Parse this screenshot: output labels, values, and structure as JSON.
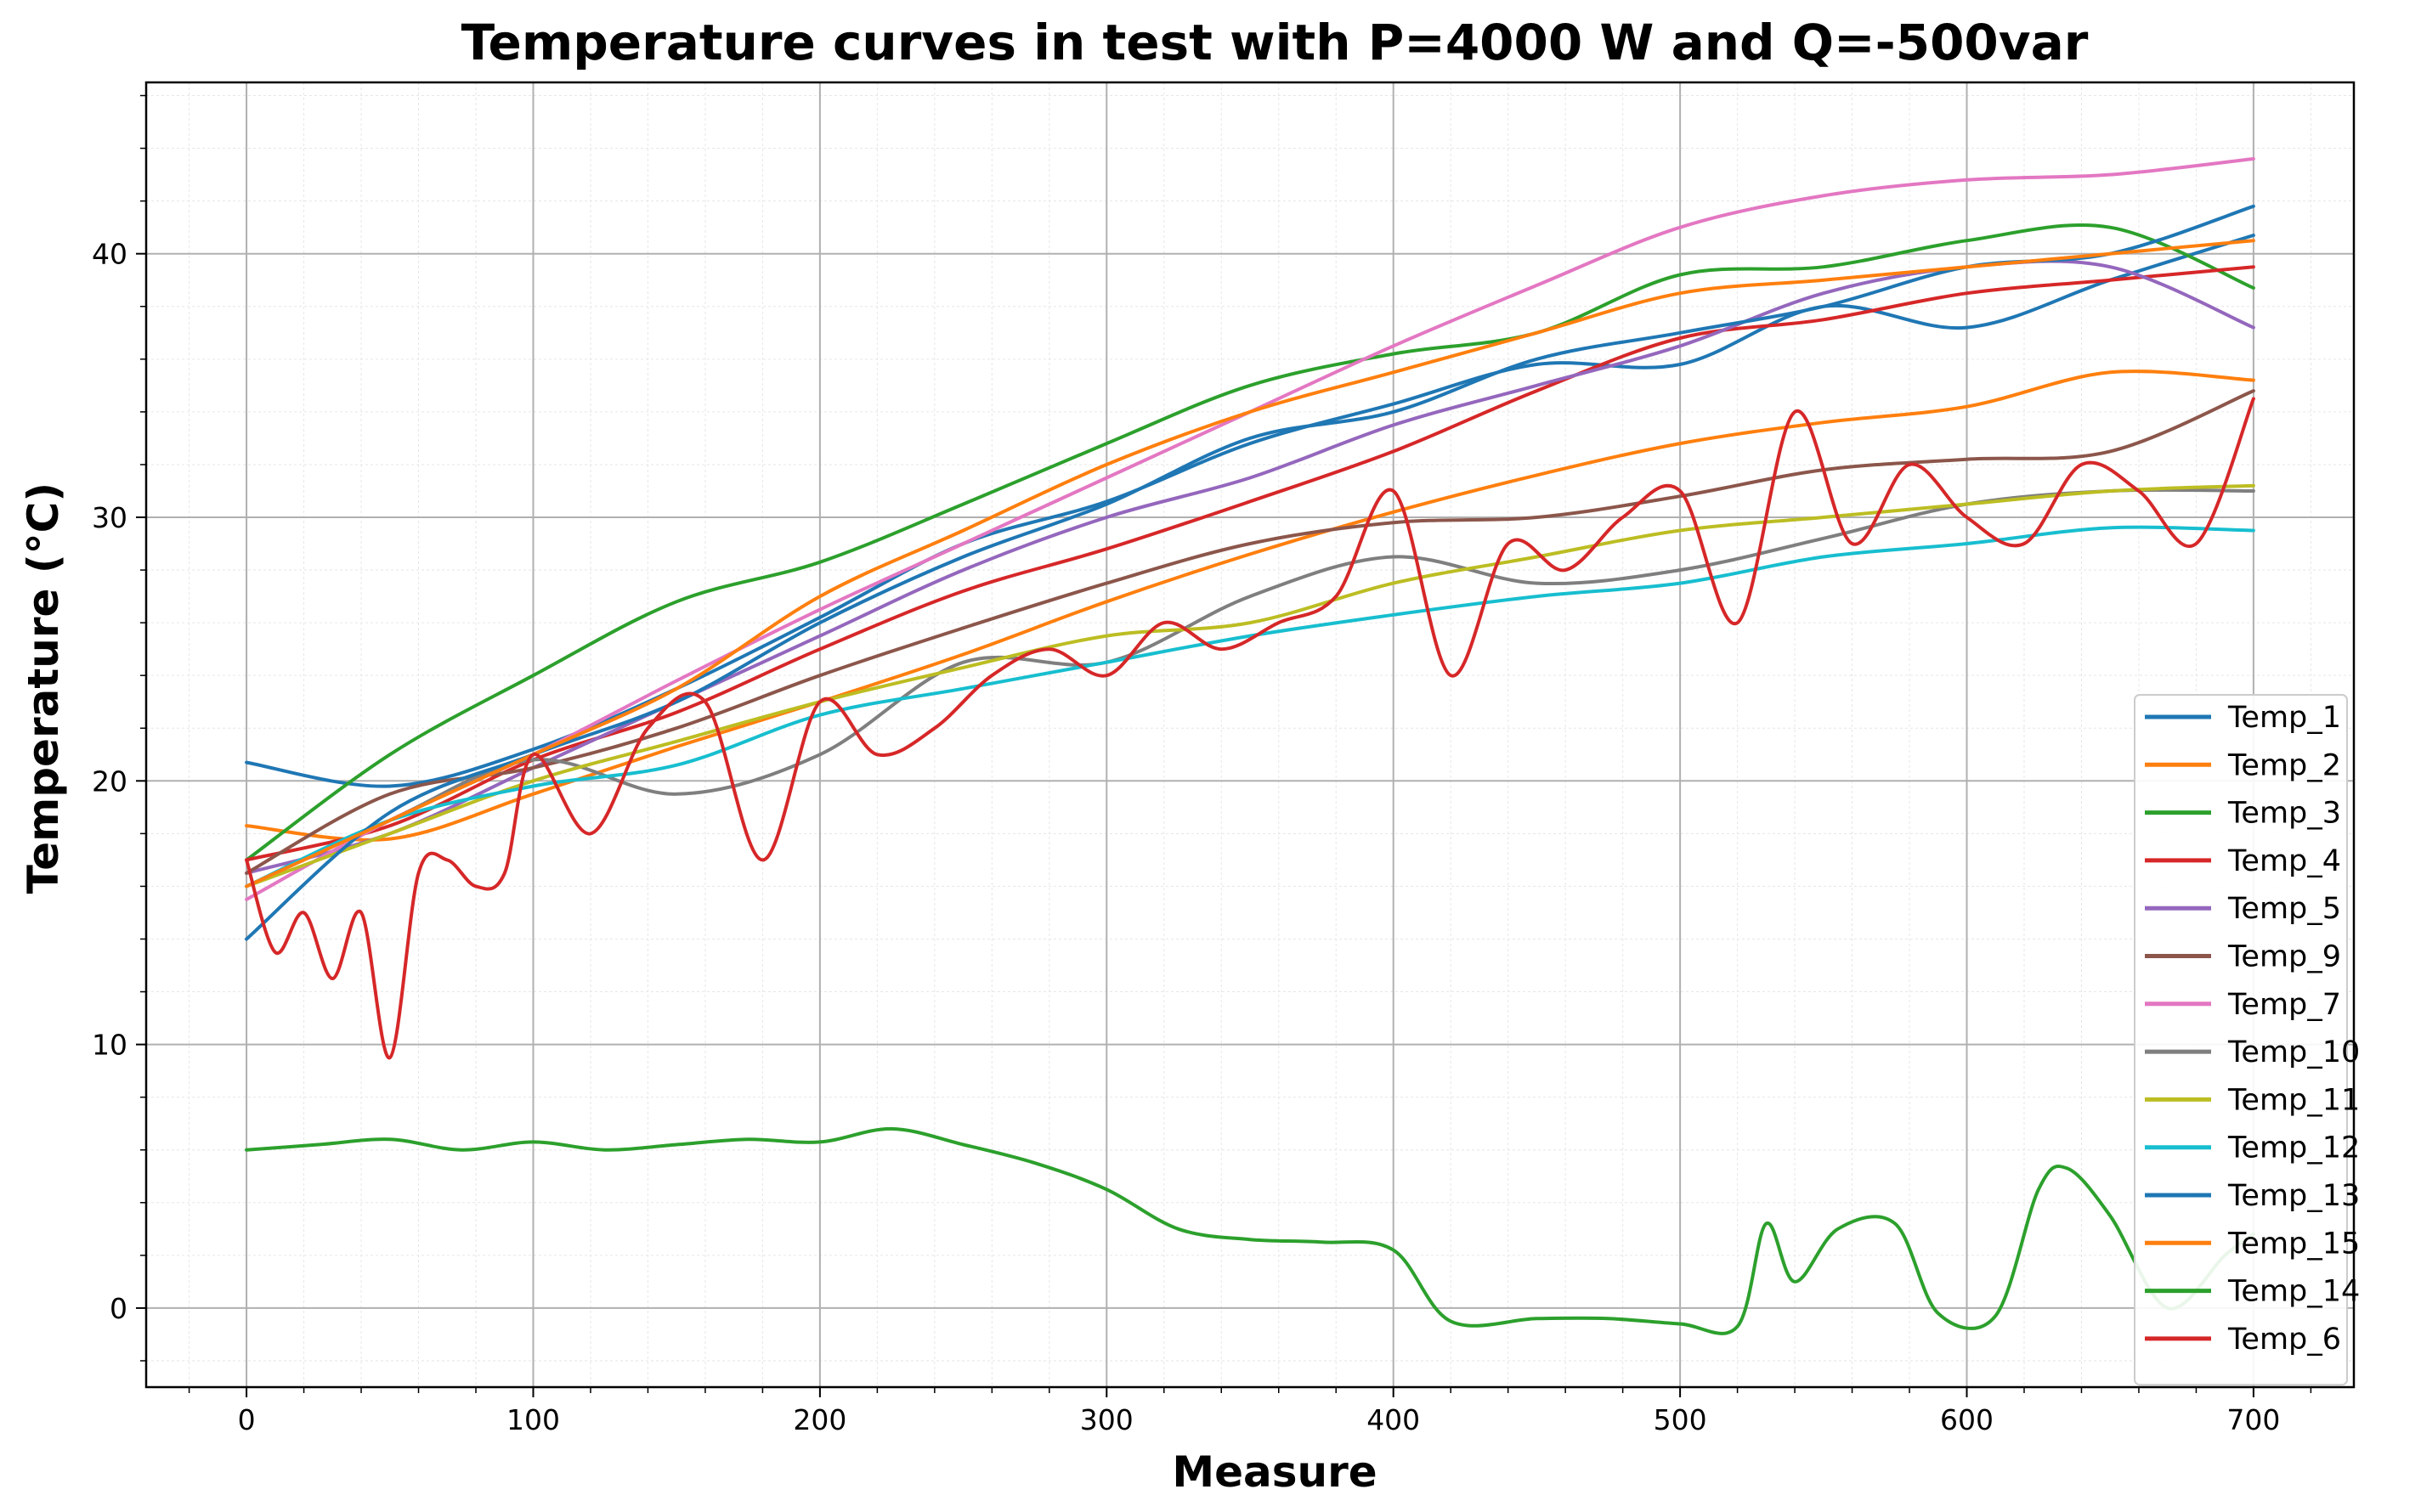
{
  "chart_data": {
    "type": "line",
    "title": "Temperature curves in test with P=4000 W and Q=-500var",
    "xlabel": "Measure",
    "ylabel": "Temperature (°C)",
    "xlim": [
      -35,
      735
    ],
    "ylim": [
      -3,
      46.5
    ],
    "xticks": [
      0,
      100,
      200,
      300,
      400,
      500,
      600,
      700
    ],
    "yticks": [
      0,
      10,
      20,
      30,
      40
    ],
    "grid": true,
    "minor_grid": true,
    "legend_position": "lower-right",
    "series": [
      {
        "name": "Temp_1",
        "color": "#1f77b4",
        "x": [
          0,
          50,
          100,
          150,
          200,
          250,
          300,
          350,
          400,
          450,
          500,
          550,
          600,
          650,
          700
        ],
        "y": [
          20.7,
          19.8,
          21.2,
          23.5,
          26.2,
          29.0,
          30.6,
          32.8,
          34.3,
          35.8,
          35.8,
          38.0,
          37.2,
          39.0,
          40.7
        ]
      },
      {
        "name": "Temp_2",
        "color": "#ff7f0e",
        "x": [
          0,
          50,
          100,
          150,
          200,
          250,
          300,
          350,
          400,
          450,
          500,
          550,
          600,
          650,
          700
        ],
        "y": [
          18.3,
          17.8,
          19.5,
          21.3,
          23.0,
          24.8,
          26.8,
          28.6,
          30.2,
          31.6,
          32.8,
          33.6,
          34.2,
          35.5,
          35.2
        ]
      },
      {
        "name": "Temp_3",
        "color": "#2ca02c",
        "x": [
          0,
          50,
          100,
          150,
          200,
          250,
          300,
          350,
          400,
          450,
          500,
          550,
          600,
          650,
          700
        ],
        "y": [
          17.0,
          21.0,
          24.0,
          26.8,
          28.3,
          30.5,
          32.8,
          35.0,
          36.2,
          37.0,
          39.2,
          39.5,
          40.5,
          41.0,
          38.7
        ]
      },
      {
        "name": "Temp_4",
        "color": "#d62728",
        "x": [
          0,
          50,
          100,
          150,
          200,
          250,
          300,
          350,
          400,
          450,
          500,
          550,
          600,
          650,
          700
        ],
        "y": [
          17.0,
          18.3,
          20.8,
          22.6,
          25.0,
          27.2,
          28.8,
          30.6,
          32.5,
          34.8,
          36.8,
          37.5,
          38.5,
          39.0,
          39.5
        ]
      },
      {
        "name": "Temp_5",
        "color": "#9467bd",
        "x": [
          0,
          50,
          100,
          150,
          200,
          250,
          300,
          350,
          400,
          450,
          500,
          550,
          600,
          650,
          700
        ],
        "y": [
          16.5,
          18.0,
          20.5,
          23.0,
          25.5,
          28.0,
          30.0,
          31.5,
          33.5,
          35.0,
          36.5,
          38.5,
          39.5,
          39.5,
          37.2
        ]
      },
      {
        "name": "Temp_9",
        "color": "#8c564b",
        "x": [
          0,
          50,
          100,
          150,
          200,
          250,
          300,
          350,
          400,
          450,
          500,
          550,
          600,
          650,
          700
        ],
        "y": [
          16.5,
          19.5,
          20.5,
          22.0,
          24.0,
          25.8,
          27.5,
          29.0,
          29.8,
          30.0,
          30.8,
          31.8,
          32.2,
          32.5,
          34.8
        ]
      },
      {
        "name": "Temp_7",
        "color": "#e377c2",
        "x": [
          0,
          50,
          100,
          150,
          200,
          250,
          300,
          350,
          400,
          450,
          500,
          550,
          600,
          650,
          700
        ],
        "y": [
          15.5,
          18.5,
          21.0,
          23.8,
          26.5,
          29.0,
          31.5,
          34.0,
          36.5,
          38.8,
          41.0,
          42.2,
          42.8,
          43.0,
          43.6
        ]
      },
      {
        "name": "Temp_10",
        "color": "#7f7f7f",
        "x": [
          0,
          50,
          100,
          150,
          200,
          250,
          300,
          350,
          400,
          450,
          500,
          550,
          600,
          650,
          700
        ],
        "y": [
          16.0,
          18.5,
          20.8,
          19.5,
          21.0,
          24.5,
          24.5,
          27.0,
          28.5,
          27.5,
          28.0,
          29.2,
          30.5,
          31.0,
          31.0
        ]
      },
      {
        "name": "Temp_11",
        "color": "#bcbd22",
        "x": [
          0,
          50,
          100,
          150,
          200,
          250,
          300,
          350,
          400,
          450,
          500,
          550,
          600,
          650,
          700
        ],
        "y": [
          16.0,
          18.0,
          20.0,
          21.5,
          23.0,
          24.3,
          25.5,
          26.0,
          27.5,
          28.5,
          29.5,
          30.0,
          30.5,
          31.0,
          31.2
        ]
      },
      {
        "name": "Temp_12",
        "color": "#17becf",
        "x": [
          0,
          50,
          100,
          150,
          200,
          250,
          300,
          350,
          400,
          450,
          500,
          550,
          600,
          650,
          700
        ],
        "y": [
          16.0,
          18.5,
          19.8,
          20.6,
          22.5,
          23.5,
          24.5,
          25.5,
          26.3,
          27.0,
          27.5,
          28.5,
          29.0,
          29.6,
          29.5
        ]
      },
      {
        "name": "Temp_13",
        "color": "#1f77b4",
        "x": [
          0,
          50,
          100,
          150,
          200,
          250,
          300,
          350,
          400,
          450,
          500,
          550,
          600,
          650,
          700
        ],
        "y": [
          14.0,
          18.8,
          21.0,
          23.0,
          26.0,
          28.5,
          30.5,
          33.0,
          34.0,
          36.0,
          37.0,
          38.0,
          39.5,
          40.0,
          41.8
        ]
      },
      {
        "name": "Temp_15",
        "color": "#ff7f0e",
        "x": [
          0,
          50,
          100,
          150,
          200,
          250,
          300,
          350,
          400,
          450,
          500,
          550,
          600,
          650,
          700
        ],
        "y": [
          16.0,
          18.5,
          21.0,
          23.5,
          27.0,
          29.5,
          32.0,
          34.0,
          35.5,
          37.0,
          38.5,
          39.0,
          39.5,
          40.0,
          40.5
        ]
      },
      {
        "name": "Temp_14",
        "color": "#2ca02c",
        "x": [
          0,
          25,
          50,
          75,
          100,
          125,
          150,
          175,
          200,
          225,
          250,
          275,
          300,
          325,
          350,
          375,
          400,
          420,
          450,
          475,
          500,
          520,
          530,
          540,
          555,
          575,
          590,
          610,
          625,
          635,
          650,
          670,
          690,
          700
        ],
        "y": [
          6.0,
          6.2,
          6.4,
          6.0,
          6.3,
          6.0,
          6.2,
          6.4,
          6.3,
          6.8,
          6.2,
          5.5,
          4.5,
          3.0,
          2.6,
          2.5,
          2.2,
          -0.5,
          -0.4,
          -0.4,
          -0.6,
          -0.7,
          3.2,
          1.0,
          3.0,
          3.2,
          -0.2,
          -0.3,
          4.5,
          5.3,
          3.5,
          0.0,
          2.0,
          2.8
        ]
      },
      {
        "name": "Temp_6",
        "color": "#d62728",
        "x": [
          0,
          10,
          20,
          30,
          40,
          50,
          60,
          70,
          80,
          90,
          100,
          120,
          140,
          160,
          180,
          200,
          220,
          240,
          260,
          280,
          300,
          320,
          340,
          360,
          380,
          400,
          420,
          440,
          460,
          480,
          500,
          520,
          540,
          560,
          580,
          600,
          620,
          640,
          660,
          680,
          700
        ],
        "y": [
          17.0,
          13.5,
          15.0,
          12.5,
          15.0,
          9.5,
          16.5,
          17.0,
          16.0,
          16.5,
          21.0,
          18.0,
          22.0,
          23.0,
          17.0,
          23.0,
          21.0,
          22.0,
          24.0,
          25.0,
          24.0,
          26.0,
          25.0,
          26.0,
          27.0,
          31.0,
          24.0,
          29.0,
          28.0,
          30.0,
          31.0,
          26.0,
          34.0,
          29.0,
          32.0,
          30.0,
          29.0,
          32.0,
          31.0,
          29.0,
          34.5
        ]
      }
    ]
  }
}
